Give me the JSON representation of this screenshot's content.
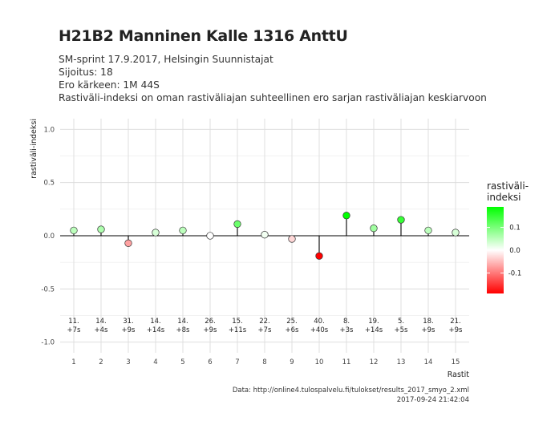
{
  "header": {
    "title": "H21B2 Manninen Kalle 1316 AnttU",
    "subtitle_lines": [
      "SM-sprint 17.9.2017, Helsingin Suunnistajat",
      "Sijoitus: 18",
      "Ero kärkeen: 1M 44S",
      "Rastiväli-indeksi on oman rastiväliajan suhteellinen ero sarjan rastiväliajan keskiarvoon"
    ]
  },
  "caption": {
    "source": "Data: http://online4.tulospalvelu.fi/tulokset/results_2017_smyo_2.xml",
    "timestamp": "2017-09-24 21:42:04"
  },
  "chart_data": {
    "type": "scatter",
    "xlabel": "Rastit",
    "ylabel": "rastiväli-indeksi",
    "xlim": [
      0.5,
      15.5
    ],
    "ylim": [
      -1.0,
      1.0
    ],
    "x_ticks": [
      1,
      2,
      3,
      4,
      5,
      6,
      7,
      8,
      9,
      10,
      11,
      12,
      13,
      14,
      15
    ],
    "y_ticks": [
      -1.0,
      -0.5,
      0.0,
      0.5,
      1.0
    ],
    "y_tick_labels": [
      "-1.0",
      "-0.5",
      "0.0",
      "0.5",
      "1.0"
    ],
    "grid": true,
    "legend": {
      "title_lines": [
        "rastiväli-",
        "indeksi"
      ],
      "placement": "right",
      "breaks": [
        0.1,
        0.0,
        -0.1
      ],
      "labels": [
        "0.1",
        "0.0",
        "-0.1"
      ],
      "limits": [
        -0.19,
        0.19
      ],
      "colors": {
        "low": "#ff0000",
        "mid": "#ffffff",
        "high": "#00ff00"
      }
    },
    "x": [
      1,
      2,
      3,
      4,
      5,
      6,
      7,
      8,
      9,
      10,
      11,
      12,
      13,
      14,
      15
    ],
    "values": [
      0.05,
      0.06,
      -0.07,
      0.03,
      0.05,
      0.0,
      0.11,
      0.01,
      -0.03,
      -0.19,
      0.19,
      0.07,
      0.15,
      0.05,
      0.03
    ],
    "annotations": [
      {
        "rank": "11.",
        "diff": "+7s"
      },
      {
        "rank": "14.",
        "diff": "+4s"
      },
      {
        "rank": "31.",
        "diff": "+9s"
      },
      {
        "rank": "14.",
        "diff": "+14s"
      },
      {
        "rank": "14.",
        "diff": "+8s"
      },
      {
        "rank": "26.",
        "diff": "+9s"
      },
      {
        "rank": "15.",
        "diff": "+11s"
      },
      {
        "rank": "22.",
        "diff": "+7s"
      },
      {
        "rank": "25.",
        "diff": "+6s"
      },
      {
        "rank": "40.",
        "diff": "+40s"
      },
      {
        "rank": "8.",
        "diff": "+3s"
      },
      {
        "rank": "19.",
        "diff": "+14s"
      },
      {
        "rank": "5.",
        "diff": "+5s"
      },
      {
        "rank": "18.",
        "diff": "+9s"
      },
      {
        "rank": "21.",
        "diff": "+9s"
      }
    ]
  }
}
